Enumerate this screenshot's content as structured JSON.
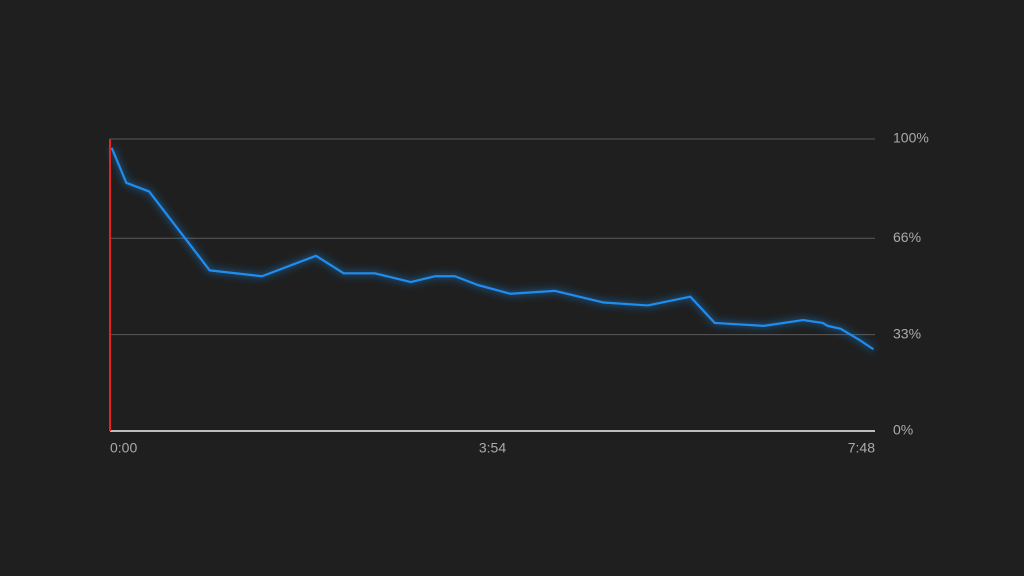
{
  "chart_data": {
    "type": "line",
    "x": [
      1,
      10,
      24,
      61,
      93,
      126,
      143,
      162,
      184,
      199,
      211,
      225,
      245,
      272,
      302,
      329,
      355,
      370,
      400,
      424,
      436,
      439,
      447,
      459,
      467
    ],
    "series": [
      {
        "color": "#1f8ef1",
        "values": [
          97,
          85,
          82,
          55,
          53,
          60,
          54,
          54,
          51,
          53,
          53,
          50,
          47,
          48,
          44,
          43,
          46,
          37,
          36,
          38,
          37,
          36,
          35,
          31,
          28
        ]
      }
    ],
    "xlim": [
      0,
      468
    ],
    "xticks": [
      {
        "value": 0,
        "label": "0:00"
      },
      {
        "value": 234,
        "label": "3:54"
      },
      {
        "value": 468,
        "label": "7:48"
      }
    ],
    "ylim": [
      0,
      100
    ],
    "yticks": [
      {
        "value": 0,
        "label": "0%"
      },
      {
        "value": 33,
        "label": "33%"
      },
      {
        "value": 66,
        "label": "66%"
      },
      {
        "value": 100,
        "label": "100%"
      }
    ],
    "grid": true
  }
}
